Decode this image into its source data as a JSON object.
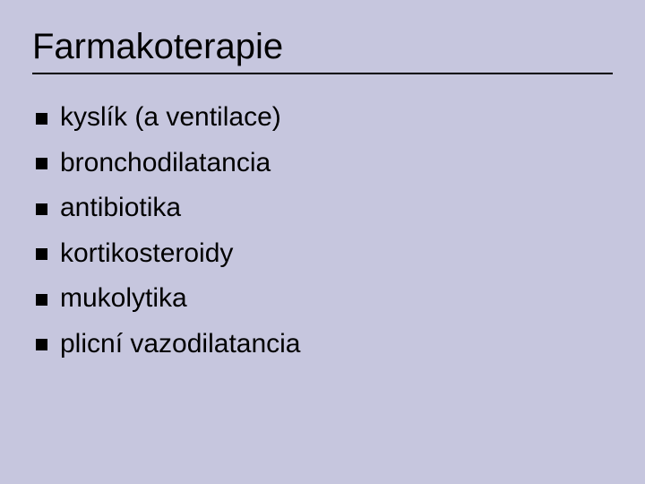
{
  "slide": {
    "title": "Farmakoterapie",
    "background_color": "#c6c6de",
    "text_color": "#000000",
    "title_fontsize": 40,
    "item_fontsize": 30,
    "divider_color": "#000000",
    "bullet_marker_color": "#000000",
    "bullet_marker_size": 13,
    "items": [
      "kyslík (a ventilace)",
      "bronchodilatancia",
      "antibiotika",
      "kortikosteroidy",
      "mukolytika",
      "plicní vazodilatancia"
    ]
  }
}
